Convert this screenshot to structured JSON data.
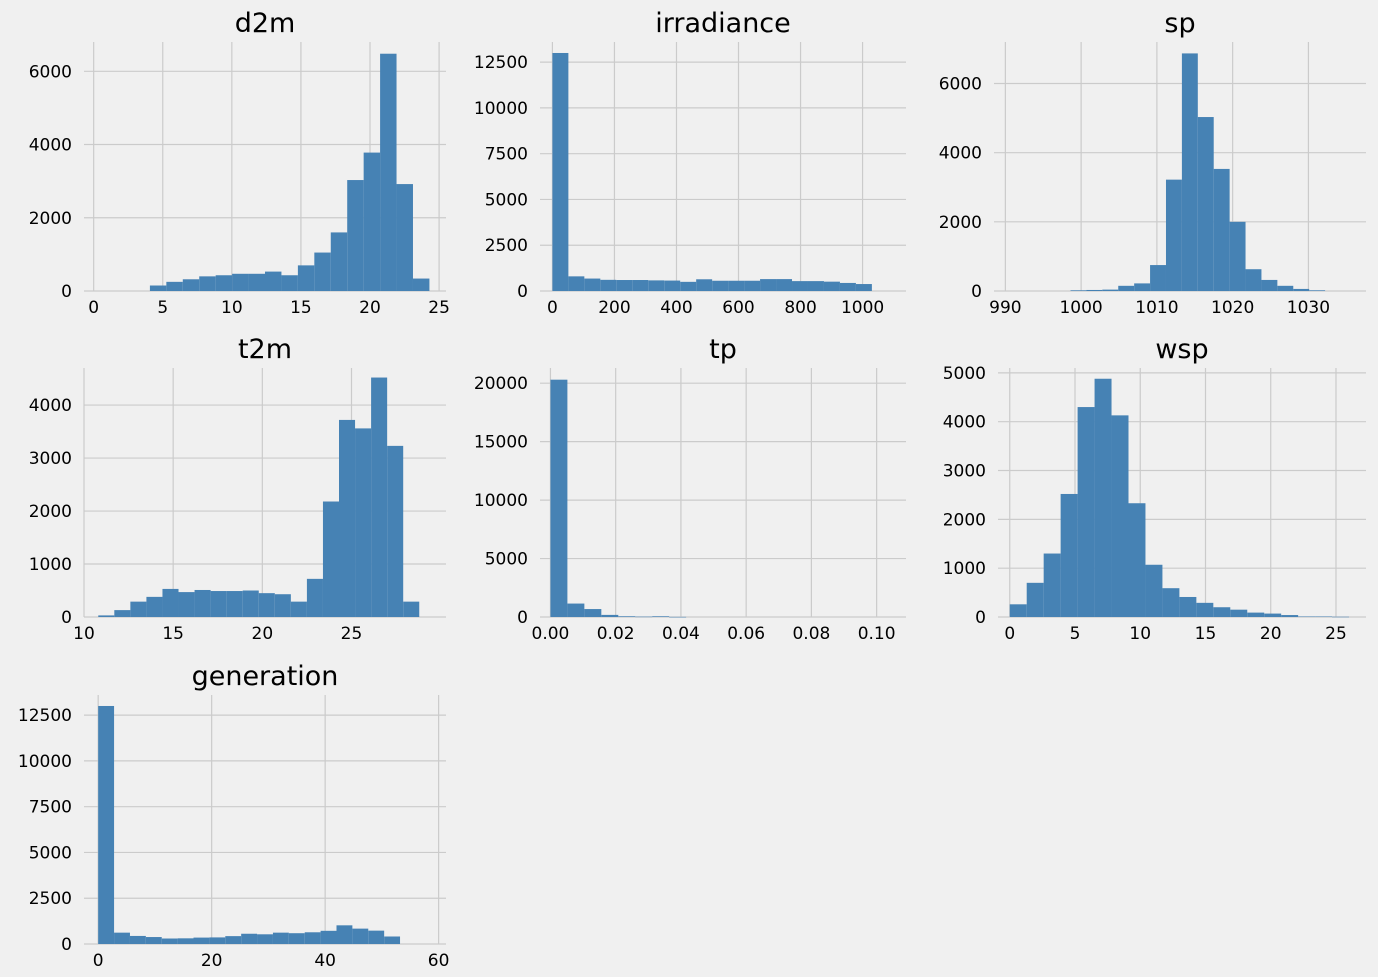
{
  "colors": {
    "background": "#f0f0f0",
    "bar": "#4682b4",
    "grid": "#cbcbcb"
  },
  "chart_data": [
    {
      "type": "bar",
      "title": "d2m",
      "bin_edges": [
        0.5,
        1.69,
        2.88,
        4.07,
        5.26,
        6.45,
        7.64,
        8.83,
        10.02,
        11.21,
        12.4,
        13.59,
        14.78,
        15.97,
        17.16,
        18.35,
        19.54,
        20.73,
        21.92,
        23.11,
        24.3
      ],
      "counts": [
        0,
        0,
        0,
        150,
        250,
        320,
        400,
        430,
        470,
        470,
        530,
        430,
        700,
        1050,
        1600,
        3030,
        3780,
        6480,
        2920,
        340
      ],
      "xlim": [
        -0.7,
        25.5
      ],
      "ylim": [
        0,
        6800
      ],
      "xticks": [
        0,
        5,
        10,
        15,
        20,
        25
      ],
      "yticks": [
        0,
        2000,
        4000,
        6000
      ],
      "xticklabels": [
        "0",
        "5",
        "10",
        "15",
        "20",
        "25"
      ],
      "yticklabels": [
        "0",
        "2000",
        "4000",
        "6000"
      ]
    },
    {
      "type": "bar",
      "title": "irradiance",
      "bin_edges": [
        0,
        51.5,
        103,
        154.5,
        206,
        257.5,
        309,
        360.5,
        412,
        463.5,
        515,
        566.5,
        618,
        669.5,
        721,
        772.5,
        824,
        875.5,
        927,
        978.5,
        1030
      ],
      "counts": [
        13000,
        800,
        680,
        610,
        600,
        600,
        580,
        570,
        500,
        640,
        560,
        560,
        560,
        650,
        650,
        540,
        540,
        510,
        440,
        380
      ],
      "xlim": [
        -40,
        1140
      ],
      "ylim": [
        0,
        13600
      ],
      "xticks": [
        0,
        200,
        400,
        600,
        800,
        1000
      ],
      "yticks": [
        0,
        2500,
        5000,
        7500,
        10000,
        12500
      ],
      "xticklabels": [
        "0",
        "200",
        "400",
        "600",
        "800",
        "1000"
      ],
      "yticklabels": [
        "0",
        "2500",
        "5000",
        "7500",
        "10000",
        "12500"
      ]
    },
    {
      "type": "bar",
      "title": "sp",
      "bin_edges": [
        990.2,
        992.3,
        994.4,
        996.5,
        998.6,
        1000.7,
        1002.8,
        1004.9,
        1007,
        1009.1,
        1011.2,
        1013.3,
        1015.4,
        1017.5,
        1019.6,
        1021.7,
        1023.8,
        1025.9,
        1028,
        1030.1,
        1032.2
      ],
      "counts": [
        0,
        0,
        0,
        0,
        20,
        30,
        40,
        150,
        220,
        750,
        3220,
        6870,
        5030,
        3530,
        2000,
        630,
        320,
        150,
        60,
        20
      ],
      "xlim": [
        988.5,
        1037.6
      ],
      "ylim": [
        0,
        7200
      ],
      "xticks": [
        990,
        1000,
        1010,
        1020,
        1030
      ],
      "yticks": [
        0,
        2000,
        4000,
        6000
      ],
      "xticklabels": [
        "990",
        "1000",
        "1010",
        "1020",
        "1030"
      ],
      "yticklabels": [
        "0",
        "2000",
        "4000",
        "6000"
      ]
    },
    {
      "type": "bar",
      "title": "t2m",
      "bin_edges": [
        10.8,
        11.7,
        12.6,
        13.5,
        14.4,
        15.3,
        16.2,
        17.1,
        18,
        18.9,
        19.8,
        20.7,
        21.6,
        22.5,
        23.4,
        24.3,
        25.2,
        26.1,
        27,
        27.9,
        28.8
      ],
      "counts": [
        30,
        130,
        290,
        380,
        530,
        470,
        510,
        490,
        490,
        500,
        450,
        430,
        290,
        720,
        2180,
        3720,
        3560,
        4520,
        3230,
        290
      ],
      "xlim": [
        10,
        30.3
      ],
      "ylim": [
        0,
        4700
      ],
      "xticks": [
        10,
        15,
        20,
        25
      ],
      "yticks": [
        0,
        1000,
        2000,
        3000,
        4000
      ],
      "xticklabels": [
        "10",
        "15",
        "20",
        "25"
      ],
      "yticklabels": [
        "0",
        "1000",
        "2000",
        "3000",
        "4000"
      ]
    },
    {
      "type": "bar",
      "title": "tp",
      "bin_edges": [
        0,
        0.0052,
        0.0104,
        0.0156,
        0.0208,
        0.026,
        0.0312,
        0.0364,
        0.0416,
        0.0468,
        0.052,
        0.0572,
        0.0624,
        0.0676,
        0.0728,
        0.078,
        0.0832,
        0.0884,
        0.0936,
        0.0988,
        0.104
      ],
      "counts": [
        20300,
        1150,
        680,
        180,
        60,
        30,
        60,
        10,
        0,
        0,
        0,
        0,
        0,
        0,
        0,
        0,
        0,
        0,
        0,
        0
      ],
      "xlim": [
        -0.0032,
        0.109
      ],
      "ylim": [
        0,
        21300
      ],
      "xticks": [
        0,
        0.02,
        0.04,
        0.06,
        0.08,
        0.1
      ],
      "yticks": [
        0,
        5000,
        10000,
        15000,
        20000
      ],
      "xticklabels": [
        "0.00",
        "0.02",
        "0.04",
        "0.06",
        "0.08",
        "0.10"
      ],
      "yticklabels": [
        "0",
        "5000",
        "10000",
        "15000",
        "20000"
      ]
    },
    {
      "type": "bar",
      "title": "wsp",
      "bin_edges": [
        0,
        1.3,
        2.6,
        3.9,
        5.2,
        6.5,
        7.8,
        9.1,
        10.4,
        11.7,
        13,
        14.3,
        15.6,
        16.9,
        18.2,
        19.5,
        20.8,
        22.1,
        23.4,
        24.7,
        26
      ],
      "counts": [
        260,
        700,
        1300,
        2520,
        4300,
        4880,
        4130,
        2330,
        1070,
        590,
        410,
        290,
        200,
        150,
        90,
        70,
        40,
        10,
        10,
        5
      ],
      "xlim": [
        -0.9,
        27.3
      ],
      "ylim": [
        0,
        5100
      ],
      "xticks": [
        0,
        5,
        10,
        15,
        20,
        25
      ],
      "yticks": [
        0,
        1000,
        2000,
        3000,
        4000,
        5000
      ],
      "xticklabels": [
        "0",
        "5",
        "10",
        "15",
        "20",
        "25"
      ],
      "yticklabels": [
        "0",
        "1000",
        "2000",
        "3000",
        "4000",
        "5000"
      ]
    },
    {
      "type": "bar",
      "title": "generation",
      "bin_edges": [
        0,
        2.8,
        5.6,
        8.4,
        11.2,
        14,
        16.8,
        19.6,
        22.4,
        25.2,
        28,
        30.8,
        33.6,
        36.4,
        39.2,
        42,
        44.8,
        47.6,
        50.4,
        53.2,
        56
      ],
      "counts": [
        13000,
        620,
        440,
        380,
        300,
        310,
        350,
        360,
        430,
        560,
        530,
        620,
        590,
        640,
        720,
        1020,
        840,
        730,
        410,
        0
      ],
      "xlim": [
        -2.5,
        61.3
      ],
      "ylim": [
        0,
        13600
      ],
      "xticks": [
        0,
        20,
        40,
        60
      ],
      "yticks": [
        0,
        2500,
        5000,
        7500,
        10000,
        12500
      ],
      "xticklabels": [
        "0",
        "20",
        "40",
        "60"
      ],
      "yticklabels": [
        "0",
        "2500",
        "5000",
        "7500",
        "10000",
        "12500"
      ]
    }
  ]
}
